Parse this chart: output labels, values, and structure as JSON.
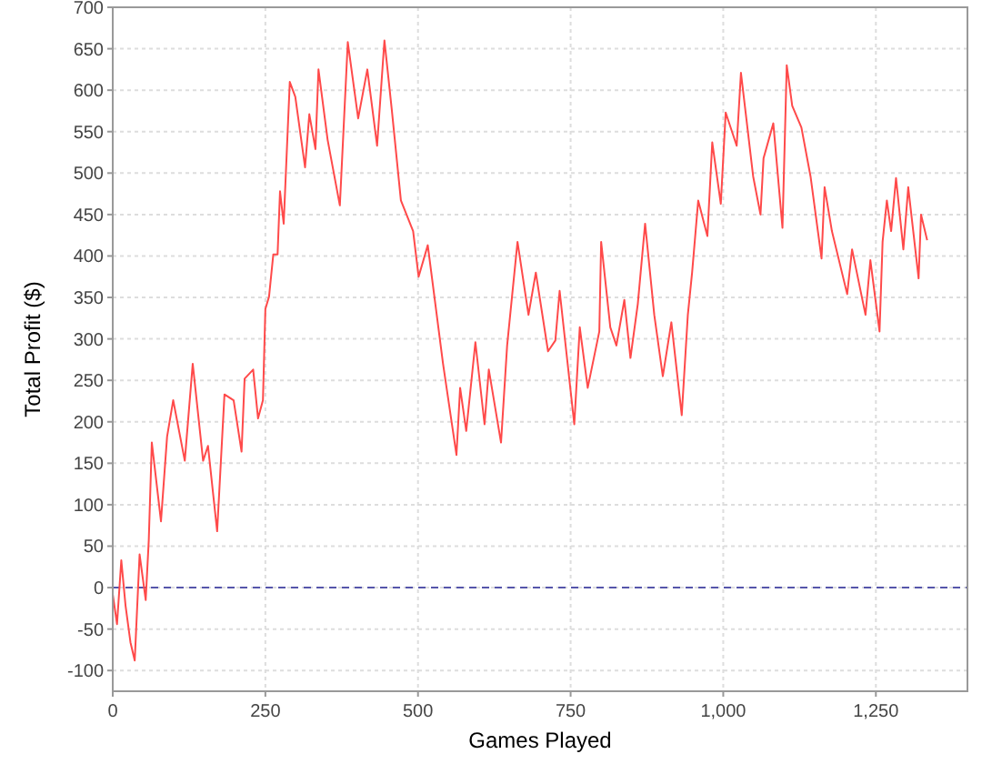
{
  "chart_data": {
    "type": "line",
    "xlabel": "Games Played",
    "ylabel": "Total Profit ($)",
    "xlim": [
      0,
      1400
    ],
    "ylim": [
      -125,
      700
    ],
    "xticks": [
      0,
      250,
      500,
      750,
      {
        "value": 1000,
        "label": "1,000"
      },
      {
        "value": 1250,
        "label": "1,250"
      }
    ],
    "yticks": [
      -100,
      -50,
      0,
      50,
      100,
      150,
      200,
      250,
      300,
      350,
      400,
      450,
      500,
      550,
      600,
      650,
      700
    ],
    "grid": true,
    "line_style": "solid",
    "marker": "none",
    "ref_lines": [
      {
        "axis": "y",
        "value": 0,
        "label": null,
        "color": "#5555aa",
        "line_style": "dashed"
      }
    ],
    "series": [
      {
        "color": "#ff4a4a",
        "x": [
          0,
          7,
          14,
          21,
          29,
          36,
          44,
          54,
          59,
          64,
          79,
          89,
          99,
          118,
          131,
          148,
          156,
          171,
          183,
          198,
          211,
          216,
          230,
          238,
          246,
          250,
          256,
          263,
          270,
          274,
          280,
          290,
          299,
          315,
          322,
          332,
          337,
          352,
          372,
          385,
          402,
          417,
          433,
          445,
          457,
          472,
          492,
          501,
          516,
          541,
          563,
          569,
          579,
          594,
          609,
          616,
          636,
          646,
          654,
          663,
          681,
          693,
          713,
          725,
          732,
          756,
          765,
          778,
          797,
          800,
          815,
          825,
          838,
          848,
          860,
          872,
          887,
          901,
          915,
          932,
          942,
          949,
          959,
          974,
          982,
          996,
          1004,
          1022,
          1029,
          1049,
          1061,
          1066,
          1082,
          1097,
          1104,
          1113,
          1128,
          1143,
          1161,
          1166,
          1178,
          1203,
          1211,
          1233,
          1241,
          1256,
          1261,
          1268,
          1275,
          1283,
          1295,
          1303,
          1320,
          1324,
          1334
        ],
        "values": [
          -8,
          -44,
          33,
          -22,
          -66,
          -88,
          40,
          -15,
          57,
          175,
          80,
          182,
          226,
          153,
          270,
          153,
          171,
          68,
          233,
          226,
          164,
          252,
          263,
          204,
          226,
          336,
          351,
          402,
          402,
          478,
          439,
          610,
          592,
          507,
          571,
          529,
          625,
          540,
          461,
          658,
          566,
          625,
          533,
          660,
          577,
          467,
          430,
          375,
          413,
          270,
          160,
          241,
          189,
          296,
          197,
          263,
          175,
          292,
          351,
          417,
          329,
          380,
          285,
          298,
          358,
          197,
          314,
          241,
          309,
          417,
          314,
          292,
          347,
          277,
          342,
          439,
          329,
          255,
          320,
          208,
          329,
          380,
          467,
          424,
          537,
          463,
          573,
          533,
          621,
          496,
          450,
          518,
          560,
          434,
          630,
          581,
          555,
          496,
          397,
          483,
          430,
          354,
          408,
          329,
          395,
          309,
          417,
          467,
          430,
          494,
          408,
          483,
          373,
          450,
          419
        ]
      }
    ]
  }
}
